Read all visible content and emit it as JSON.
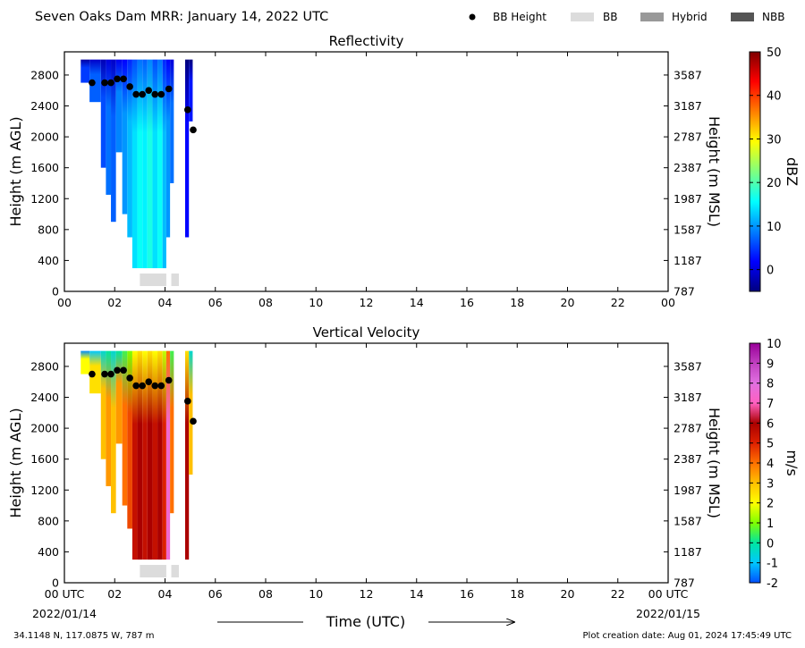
{
  "header": {
    "title": "Seven Oaks Dam MRR:  January 14, 2022 UTC"
  },
  "legend": {
    "items": [
      {
        "label": "BB Height",
        "marker": "dot",
        "color": "#000000"
      },
      {
        "label": "BB",
        "marker": "box",
        "color": "#dcdcdc"
      },
      {
        "label": "Hybrid",
        "marker": "box",
        "color": "#999999"
      },
      {
        "label": "NBB",
        "marker": "box",
        "color": "#555555"
      }
    ]
  },
  "footer": {
    "location": "34.1148 N, 117.0875 W, 787 m",
    "creation": "Plot creation date: Aug 01, 2024 17:45:49 UTC",
    "start_date": "2022/01/14",
    "end_date": "2022/01/15"
  },
  "chart_data": [
    {
      "type": "heatmap",
      "title": "Reflectivity",
      "xlabel": "",
      "ylabel": "Height (m AGL)",
      "ylabel_right": "Height (m MSL)",
      "colorbar_label": "dBZ",
      "xlim": [
        0,
        24
      ],
      "ylim": [
        0,
        3100
      ],
      "x_ticks": [
        "00",
        "02",
        "04",
        "06",
        "08",
        "10",
        "12",
        "14",
        "16",
        "18",
        "20",
        "22",
        "00"
      ],
      "y_ticks": [
        0,
        400,
        800,
        1200,
        1600,
        2000,
        2400,
        2800
      ],
      "y_ticks_right": [
        "787",
        "1187",
        "1587",
        "1987",
        "2387",
        "2787",
        "3187",
        "3587"
      ],
      "colorbar": {
        "range": [
          -5,
          50
        ],
        "ticks": [
          "0",
          "10",
          "20",
          "30",
          "40",
          "50"
        ],
        "colors": [
          "#00007f",
          "#0000ff",
          "#007fff",
          "#00ffff",
          "#7fff7f",
          "#ffff00",
          "#ff7f00",
          "#ff0000",
          "#7f0000"
        ]
      },
      "columns": [
        {
          "t0": 0.65,
          "t1": 1.0,
          "bottom": 2700,
          "value": 5
        },
        {
          "t0": 1.0,
          "t1": 1.45,
          "bottom": 2450,
          "value": 7
        },
        {
          "t0": 1.45,
          "t1": 1.65,
          "bottom": 1600,
          "value": 6
        },
        {
          "t0": 1.65,
          "t1": 1.85,
          "bottom": 1250,
          "value": 8
        },
        {
          "t0": 1.85,
          "t1": 2.05,
          "bottom": 900,
          "value": 7
        },
        {
          "t0": 2.05,
          "t1": 2.3,
          "bottom": 1800,
          "value": 9
        },
        {
          "t0": 2.3,
          "t1": 2.5,
          "bottom": 1000,
          "value": 10
        },
        {
          "t0": 2.5,
          "t1": 2.7,
          "bottom": 700,
          "value": 12
        },
        {
          "t0": 2.7,
          "t1": 2.9,
          "bottom": 300,
          "value": 14
        },
        {
          "t0": 2.9,
          "t1": 3.1,
          "bottom": 300,
          "value": 16
        },
        {
          "t0": 3.1,
          "t1": 3.3,
          "bottom": 300,
          "value": 15
        },
        {
          "t0": 3.3,
          "t1": 3.5,
          "bottom": 300,
          "value": 17
        },
        {
          "t0": 3.5,
          "t1": 3.7,
          "bottom": 300,
          "value": 14
        },
        {
          "t0": 3.7,
          "t1": 3.9,
          "bottom": 300,
          "value": 16
        },
        {
          "t0": 3.9,
          "t1": 4.05,
          "bottom": 300,
          "value": 12
        },
        {
          "t0": 4.05,
          "t1": 4.2,
          "bottom": 700,
          "value": 10
        },
        {
          "t0": 4.2,
          "t1": 4.35,
          "bottom": 1400,
          "value": 8
        },
        {
          "t0": 4.8,
          "t1": 4.95,
          "bottom": 700,
          "value": 2
        },
        {
          "t0": 4.95,
          "t1": 5.1,
          "bottom": 2200,
          "value": 3
        }
      ],
      "bb_height_time": [
        1.1,
        1.6,
        1.85,
        2.1,
        2.35,
        2.6,
        2.85,
        3.1,
        3.35,
        3.6,
        3.85,
        4.15,
        4.9,
        5.12
      ],
      "bb_height_m": [
        2700,
        2700,
        2700,
        2750,
        2750,
        2650,
        2550,
        2550,
        2600,
        2550,
        2550,
        2620,
        2350,
        2090
      ],
      "bb_class_bars": [
        {
          "t0": 3.0,
          "t1": 4.05,
          "class": "BB"
        },
        {
          "t0": 4.25,
          "t1": 4.55,
          "class": "BB"
        }
      ]
    },
    {
      "type": "heatmap",
      "title": "Vertical Velocity",
      "xlabel": "Time (UTC)",
      "ylabel": "Height (m AGL)",
      "ylabel_right": "Height (m MSL)",
      "colorbar_label": "m/s",
      "xlim": [
        0,
        24
      ],
      "ylim": [
        0,
        3100
      ],
      "x_ticks": [
        "00 UTC",
        "02",
        "04",
        "06",
        "08",
        "10",
        "12",
        "14",
        "16",
        "18",
        "20",
        "22",
        "00 UTC"
      ],
      "y_ticks": [
        0,
        400,
        800,
        1200,
        1600,
        2000,
        2400,
        2800
      ],
      "y_ticks_right": [
        "787",
        "1187",
        "1587",
        "1987",
        "2387",
        "2787",
        "3187",
        "3587"
      ],
      "colorbar": {
        "range": [
          -2,
          10
        ],
        "ticks": [
          "-2",
          "-1",
          "0",
          "1",
          "2",
          "3",
          "4",
          "5",
          "6",
          "7",
          "8",
          "9",
          "10"
        ],
        "colors": [
          "#0050ff",
          "#00c8ff",
          "#00e5a0",
          "#7fff00",
          "#ffff00",
          "#ffc000",
          "#ff7000",
          "#dd2000",
          "#aa0000",
          "#ff60c0",
          "#e070e0",
          "#c040c0",
          "#990099"
        ]
      },
      "columns": [
        {
          "t0": 0.65,
          "t1": 1.0,
          "bottom": 2700,
          "value": 2
        },
        {
          "t0": 1.0,
          "t1": 1.45,
          "bottom": 2450,
          "value": 2.5
        },
        {
          "t0": 1.45,
          "t1": 1.65,
          "bottom": 1600,
          "value": 3
        },
        {
          "t0": 1.65,
          "t1": 1.85,
          "bottom": 1250,
          "value": 3.5
        },
        {
          "t0": 1.85,
          "t1": 2.05,
          "bottom": 900,
          "value": 3
        },
        {
          "t0": 2.05,
          "t1": 2.3,
          "bottom": 1800,
          "value": 3.5
        },
        {
          "t0": 2.3,
          "t1": 2.5,
          "bottom": 1000,
          "value": 4
        },
        {
          "t0": 2.5,
          "t1": 2.7,
          "bottom": 700,
          "value": 4.5
        },
        {
          "t0": 2.7,
          "t1": 2.9,
          "bottom": 300,
          "value": 5.5
        },
        {
          "t0": 2.9,
          "t1": 3.1,
          "bottom": 300,
          "value": 6
        },
        {
          "t0": 3.1,
          "t1": 3.3,
          "bottom": 300,
          "value": 5.5
        },
        {
          "t0": 3.3,
          "t1": 3.5,
          "bottom": 300,
          "value": 6
        },
        {
          "t0": 3.5,
          "t1": 3.7,
          "bottom": 300,
          "value": 5.5
        },
        {
          "t0": 3.7,
          "t1": 3.9,
          "bottom": 300,
          "value": 6
        },
        {
          "t0": 3.9,
          "t1": 4.05,
          "bottom": 300,
          "value": 5
        },
        {
          "t0": 4.05,
          "t1": 4.2,
          "bottom": 300,
          "value": 7.5
        },
        {
          "t0": 4.2,
          "t1": 4.35,
          "bottom": 900,
          "value": 4
        },
        {
          "t0": 4.8,
          "t1": 4.95,
          "bottom": 300,
          "value": 6
        },
        {
          "t0": 4.95,
          "t1": 5.1,
          "bottom": 1400,
          "value": 3
        }
      ],
      "bb_height_time": [
        1.1,
        1.6,
        1.85,
        2.1,
        2.35,
        2.6,
        2.85,
        3.1,
        3.35,
        3.6,
        3.85,
        4.15,
        4.9,
        5.12
      ],
      "bb_height_m": [
        2700,
        2700,
        2700,
        2750,
        2750,
        2650,
        2550,
        2550,
        2600,
        2550,
        2550,
        2620,
        2350,
        2090
      ],
      "bb_class_bars": [
        {
          "t0": 3.0,
          "t1": 4.05,
          "class": "BB"
        },
        {
          "t0": 4.25,
          "t1": 4.55,
          "class": "BB"
        }
      ]
    }
  ]
}
